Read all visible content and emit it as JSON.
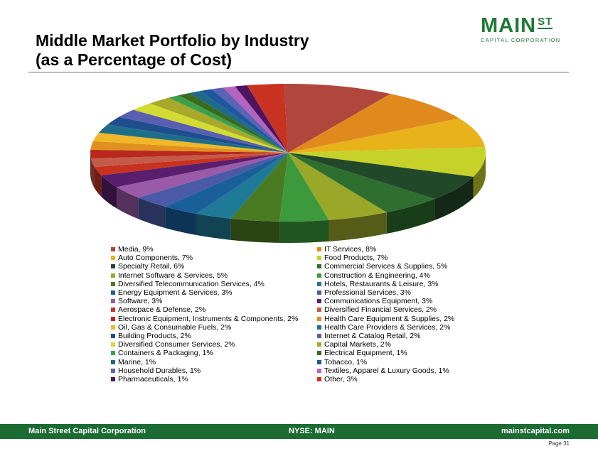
{
  "title_line1": "Middle Market Portfolio by Industry",
  "title_line2": "(as a Percentage of Cost)",
  "logo": {
    "word": "MAIN",
    "superscript": "ST",
    "subtitle": "CAPITAL CORPORATION"
  },
  "footer": {
    "left": "Main Street Capital Corporation",
    "center": "NYSE: MAIN",
    "right": "mainstcapital.com"
  },
  "page_number": "Page  31",
  "chart_data": {
    "type": "pie",
    "title": "",
    "series": [
      {
        "name": "Media, 9%",
        "value": 9,
        "color": "#b0463c"
      },
      {
        "name": "IT Services, 8%",
        "value": 8,
        "color": "#e08a1e"
      },
      {
        "name": "Auto Components, 7%",
        "value": 7,
        "color": "#e8b21a"
      },
      {
        "name": "Food Products, 7%",
        "value": 7,
        "color": "#c6d22a"
      },
      {
        "name": "Specialty Retail, 6%",
        "value": 6,
        "color": "#22482a"
      },
      {
        "name": "Commercial Services & Supplies, 5%",
        "value": 5,
        "color": "#2e6e2e"
      },
      {
        "name": "Internet Software & Services, 5%",
        "value": 5,
        "color": "#9aa82a"
      },
      {
        "name": "Construction & Engineering, 4%",
        "value": 4,
        "color": "#3c9a3c"
      },
      {
        "name": "Diversified Telecommunication Services, 4%",
        "value": 4,
        "color": "#4a7a22"
      },
      {
        "name": "Hotels, Restaurants & Leisure, 3%",
        "value": 3,
        "color": "#1e7a96"
      },
      {
        "name": "Energy Equipment & Services, 3%",
        "value": 3,
        "color": "#1a5e9a"
      },
      {
        "name": "Professional Services, 3%",
        "value": 3,
        "color": "#4a5aa6"
      },
      {
        "name": "Software, 3%",
        "value": 3,
        "color": "#9a5aa8"
      },
      {
        "name": "Communications Equipment, 3%",
        "value": 3,
        "color": "#5a1e6e"
      },
      {
        "name": "Aerospace & Defense, 2%",
        "value": 2,
        "color": "#c8321e"
      },
      {
        "name": "Diversified Financial Services, 2%",
        "value": 2,
        "color": "#c45a4a"
      },
      {
        "name": "Electronic Equipment, Instruments & Components, 2%",
        "value": 2,
        "color": "#b8281e"
      },
      {
        "name": "Health Care Equipment & Supplies, 2%",
        "value": 2,
        "color": "#e0901e"
      },
      {
        "name": "Oil, Gas & Consumable Fuels, 2%",
        "value": 2,
        "color": "#f0b828"
      },
      {
        "name": "Health Care Providers & Services, 2%",
        "value": 2,
        "color": "#1e6e8a"
      },
      {
        "name": "Building Products, 2%",
        "value": 2,
        "color": "#1e4e8e"
      },
      {
        "name": "Internet & Catalog Retail, 2%",
        "value": 2,
        "color": "#5a5eb0"
      },
      {
        "name": "Diversified Consumer Services, 2%",
        "value": 2,
        "color": "#d2dc32"
      },
      {
        "name": "Capital Markets, 2%",
        "value": 2,
        "color": "#a8a82a"
      },
      {
        "name": "Containers & Packaging, 1%",
        "value": 1,
        "color": "#3ca04a"
      },
      {
        "name": "Electrical Equipment, 1%",
        "value": 1,
        "color": "#3a6a1e"
      },
      {
        "name": "Marine, 1%",
        "value": 1,
        "color": "#1e6a8a"
      },
      {
        "name": "Tobacco, 1%",
        "value": 1,
        "color": "#1e56a0"
      },
      {
        "name": "Household Durables, 1%",
        "value": 1,
        "color": "#5a64b4"
      },
      {
        "name": "Textiles, Apparel & Luxury Goods, 1%",
        "value": 1,
        "color": "#b464c0"
      },
      {
        "name": "Pharmaceuticals, 1%",
        "value": 1,
        "color": "#4e1460"
      },
      {
        "name": "Other, 3%",
        "value": 3,
        "color": "#c83220"
      }
    ]
  }
}
